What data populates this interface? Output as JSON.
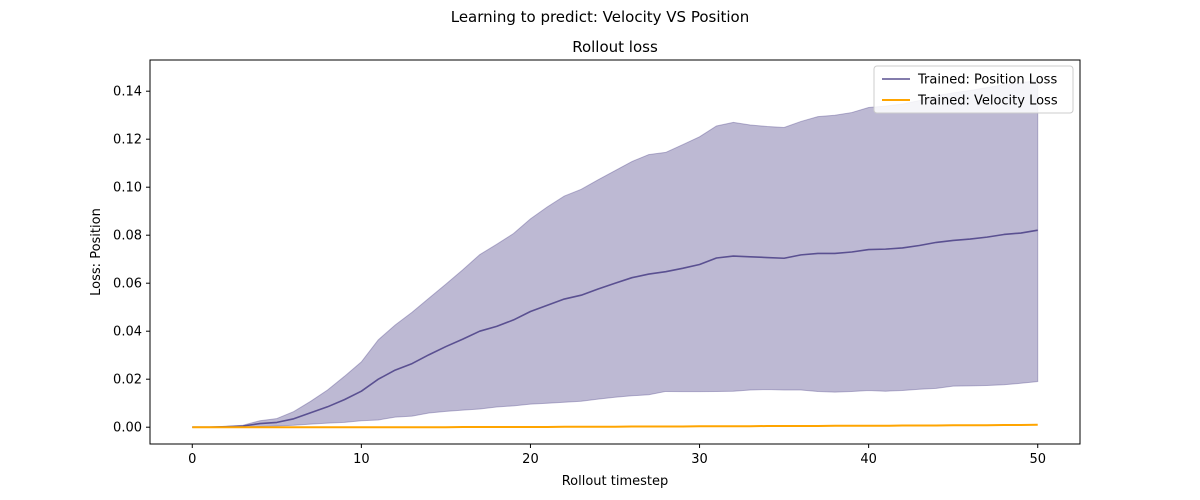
{
  "figure": {
    "suptitle": "Learning to predict: Velocity VS Position"
  },
  "chart_data": {
    "type": "line",
    "title": "Rollout loss",
    "xlabel": "Rollout timestep",
    "ylabel": "Loss: Position",
    "xlim": [
      -2.5,
      52.5
    ],
    "ylim": [
      -0.007,
      0.153
    ],
    "xticks": [
      0,
      10,
      20,
      30,
      40,
      50
    ],
    "yticks": [
      0.0,
      0.02,
      0.04,
      0.06,
      0.08,
      0.1,
      0.12,
      0.14
    ],
    "xtick_labels": [
      "0",
      "10",
      "20",
      "30",
      "40",
      "50"
    ],
    "ytick_labels": [
      "0.00",
      "0.02",
      "0.04",
      "0.06",
      "0.08",
      "0.10",
      "0.12",
      "0.14"
    ],
    "legend_position": "top-right",
    "grid": false,
    "x": [
      0,
      1,
      2,
      3,
      4,
      5,
      6,
      7,
      8,
      9,
      10,
      11,
      12,
      13,
      14,
      15,
      16,
      17,
      18,
      19,
      20,
      21,
      22,
      23,
      24,
      25,
      26,
      27,
      28,
      29,
      30,
      31,
      32,
      33,
      34,
      35,
      36,
      37,
      38,
      39,
      40,
      41,
      42,
      43,
      44,
      45,
      46,
      47,
      48,
      49,
      50
    ],
    "series": [
      {
        "name": "Trained: Position Loss",
        "color": "#5a5091",
        "fill_color": "#5a5091",
        "values": [
          0.0,
          0.0,
          0.0002,
          0.0005,
          0.0015,
          0.002,
          0.0035,
          0.006,
          0.0085,
          0.0115,
          0.015,
          0.02,
          0.0238,
          0.0265,
          0.0302,
          0.0336,
          0.0367,
          0.04,
          0.042,
          0.0447,
          0.0482,
          0.0508,
          0.0534,
          0.055,
          0.0576,
          0.06,
          0.0623,
          0.0638,
          0.0648,
          0.0662,
          0.0678,
          0.0705,
          0.0713,
          0.071,
          0.0707,
          0.0704,
          0.0718,
          0.0724,
          0.0724,
          0.073,
          0.074,
          0.0742,
          0.0747,
          0.0757,
          0.077,
          0.0778,
          0.0784,
          0.0792,
          0.0803,
          0.0809,
          0.0821
        ],
        "lower": [
          0.0,
          0.0,
          0.0,
          0.0001,
          0.0003,
          0.0005,
          0.0008,
          0.0013,
          0.0017,
          0.002,
          0.0027,
          0.003,
          0.0042,
          0.0046,
          0.0059,
          0.0066,
          0.0071,
          0.0076,
          0.0084,
          0.0089,
          0.0096,
          0.01,
          0.0104,
          0.0108,
          0.0117,
          0.0125,
          0.0131,
          0.0135,
          0.0149,
          0.0148,
          0.0148,
          0.0149,
          0.015,
          0.0155,
          0.0157,
          0.0155,
          0.0155,
          0.0149,
          0.0146,
          0.0149,
          0.0153,
          0.015,
          0.0153,
          0.0158,
          0.0162,
          0.0171,
          0.0172,
          0.0174,
          0.0177,
          0.0183,
          0.019
        ],
        "upper": [
          0.0,
          0.0,
          0.0003,
          0.0008,
          0.0027,
          0.0036,
          0.0065,
          0.0108,
          0.0155,
          0.0212,
          0.0272,
          0.0364,
          0.0426,
          0.0479,
          0.0538,
          0.0596,
          0.0656,
          0.0719,
          0.0762,
          0.0807,
          0.0868,
          0.0918,
          0.0963,
          0.0991,
          0.1031,
          0.1069,
          0.1107,
          0.1136,
          0.1145,
          0.1177,
          0.121,
          0.1255,
          0.127,
          0.1259,
          0.1253,
          0.1249,
          0.1274,
          0.1294,
          0.13,
          0.1311,
          0.1332,
          0.1338,
          0.1346,
          0.1361,
          0.1381,
          0.1393,
          0.1403,
          0.1415,
          0.1427,
          0.1435,
          0.1445
        ]
      },
      {
        "name": "Trained: Velocity Loss",
        "color": "#ffa500",
        "values": [
          0.0,
          0.0,
          0.0,
          0.0,
          0.0,
          0.0,
          0.0,
          0.0,
          0.0,
          0.0,
          0.0,
          0.0,
          0.0,
          0.0,
          0.0,
          0.0,
          0.0001,
          0.0001,
          0.0001,
          0.0001,
          0.0001,
          0.0001,
          0.0002,
          0.0002,
          0.0002,
          0.0002,
          0.0003,
          0.0003,
          0.0003,
          0.0003,
          0.0004,
          0.0004,
          0.0004,
          0.0004,
          0.0005,
          0.0005,
          0.0005,
          0.0005,
          0.0006,
          0.0006,
          0.0006,
          0.0006,
          0.0007,
          0.0007,
          0.0007,
          0.0008,
          0.0008,
          0.0008,
          0.0009,
          0.0009,
          0.001
        ]
      }
    ]
  }
}
